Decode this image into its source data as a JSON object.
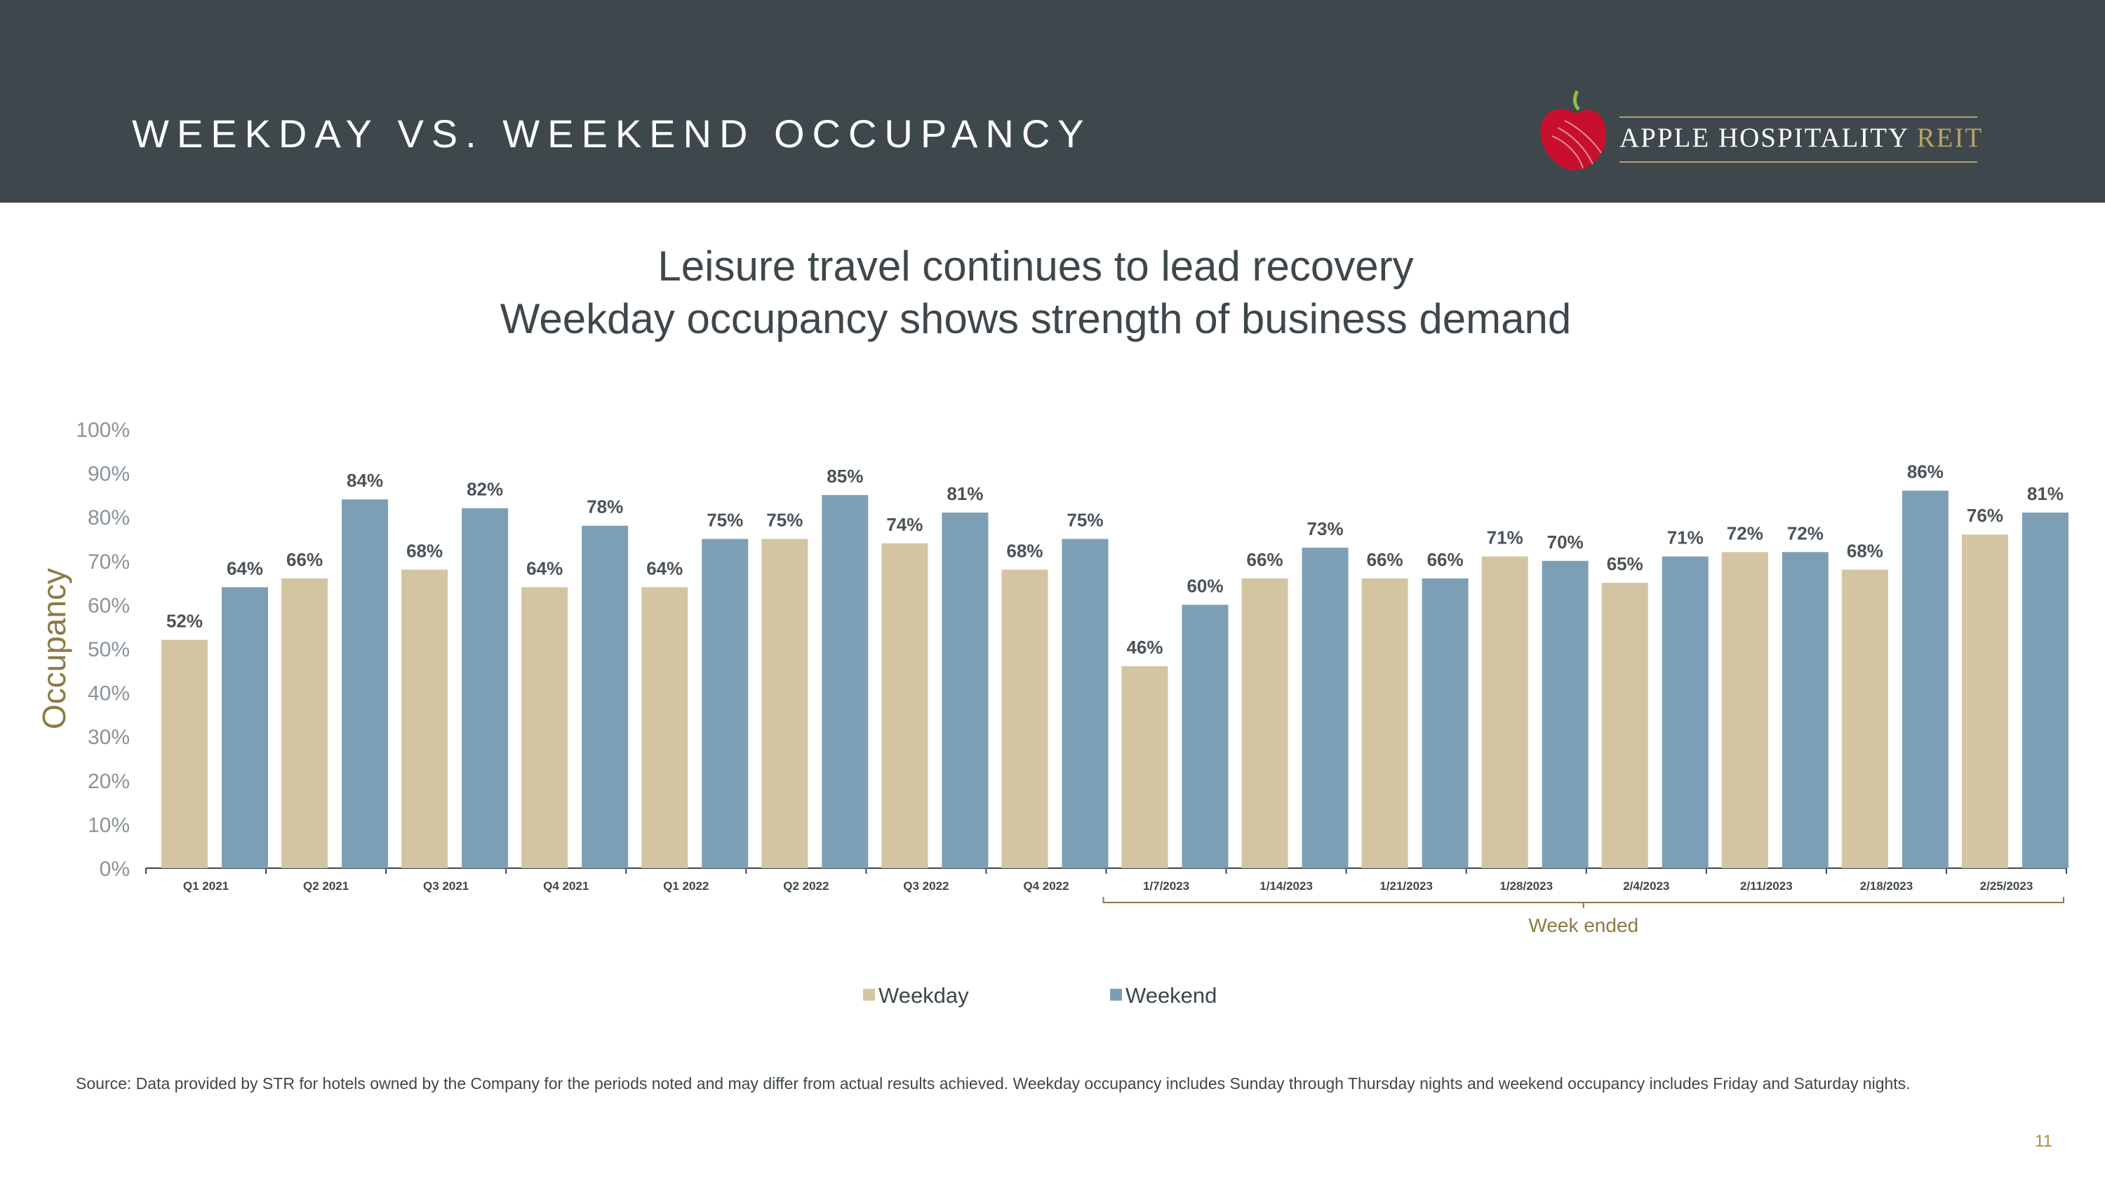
{
  "header": {
    "title": "WEEKDAY VS. WEEKEND OCCUPANCY",
    "logo_main": "APPLE HOSPITALITY",
    "logo_accent": "REIT"
  },
  "subtitle": {
    "line1": "Leisure travel continues to lead recovery",
    "line2": "Weekday occupancy shows strength of business demand"
  },
  "colors": {
    "header_bg": "#3e474b",
    "weekday": "#d3c5a1",
    "weekend": "#7d9fb6",
    "accent_gold": "#8c7a45",
    "apple_red": "#c8102e"
  },
  "chart_data": {
    "type": "bar",
    "title": "",
    "ylabel": "Occupancy",
    "xlabel": "",
    "ylim": [
      0,
      100
    ],
    "yticks": [
      "0%",
      "10%",
      "20%",
      "30%",
      "40%",
      "50%",
      "60%",
      "70%",
      "80%",
      "90%",
      "100%"
    ],
    "categories": [
      "Q1 2021",
      "Q2 2021",
      "Q3 2021",
      "Q4 2021",
      "Q1 2022",
      "Q2 2022",
      "Q3 2022",
      "Q4 2022",
      "1/7/2023",
      "1/14/2023",
      "1/21/2023",
      "1/28/2023",
      "2/4/2023",
      "2/11/2023",
      "2/18/2023",
      "2/25/2023"
    ],
    "series": [
      {
        "name": "Weekday",
        "values": [
          52,
          66,
          68,
          64,
          64,
          75,
          74,
          68,
          46,
          66,
          66,
          71,
          65,
          72,
          68,
          76
        ]
      },
      {
        "name": "Weekend",
        "values": [
          64,
          84,
          82,
          78,
          75,
          85,
          81,
          75,
          60,
          73,
          66,
          70,
          71,
          72,
          86,
          81
        ]
      }
    ],
    "bracket_label": "Week ended",
    "legend": [
      "Weekday",
      "Weekend"
    ]
  },
  "footnote": "Source:  Data provided by STR for hotels owned by the Company for the periods noted and may differ from actual results achieved. Weekday occupancy includes Sunday through Thursday nights and weekend occupancy includes Friday and Saturday nights.",
  "page_number": "11"
}
